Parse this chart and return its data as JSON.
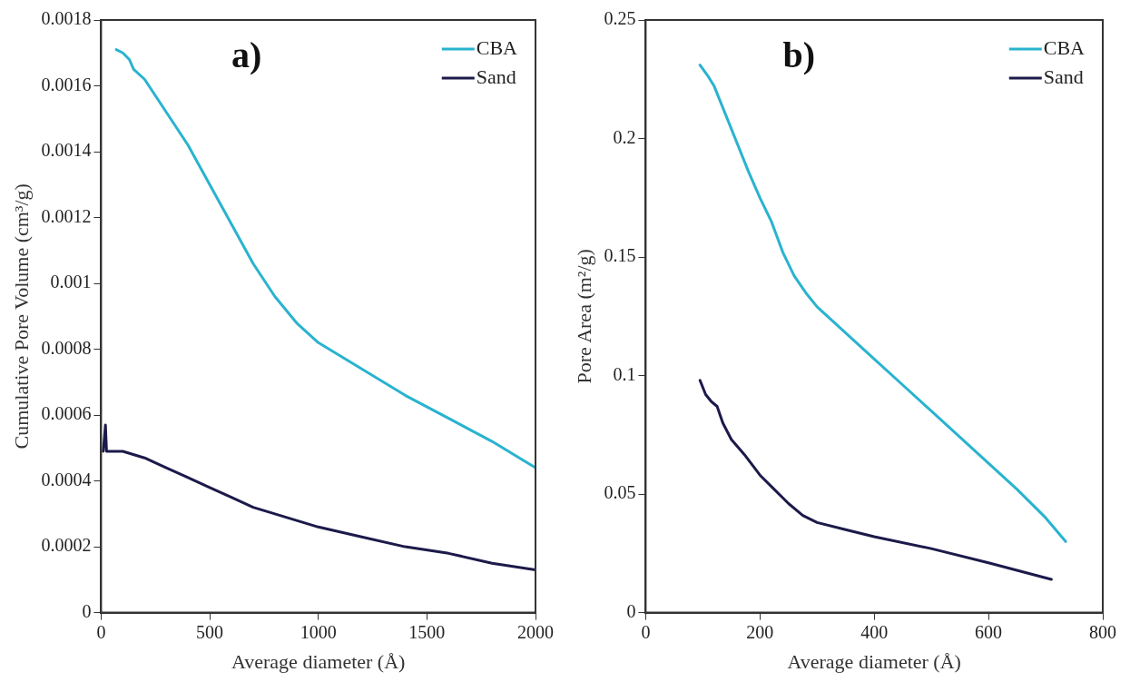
{
  "chart_data": [
    {
      "type": "line",
      "xlabel": "Average diameter (Å)",
      "ylabel": "Cumulative Pore Volume (cm³/g)",
      "annotations": [
        "a)"
      ],
      "legend": "top right",
      "marker": "none",
      "line_style": "solid",
      "grid": false,
      "xlim": [
        0,
        2000
      ],
      "xticks": [
        0,
        500,
        1000,
        1500,
        2000
      ],
      "ylim": [
        0,
        0.0018
      ],
      "yticks": [
        0,
        0.0002,
        0.0004,
        0.0006,
        0.0008,
        0.001,
        0.0012,
        0.0014,
        0.0016,
        0.0018
      ],
      "series": [
        {
          "name": "CBA",
          "color": "#29b3cf",
          "x": [
            70,
            100,
            130,
            150,
            200,
            300,
            400,
            500,
            600,
            700,
            800,
            900,
            1000,
            1200,
            1400,
            1600,
            1800,
            2000
          ],
          "values": [
            0.00171,
            0.0017,
            0.00168,
            0.00165,
            0.00162,
            0.00152,
            0.00142,
            0.0013,
            0.00118,
            0.00106,
            0.00096,
            0.00088,
            0.00082,
            0.00074,
            0.00066,
            0.00059,
            0.00052,
            0.00044
          ]
        },
        {
          "name": "Sand",
          "color": "#1c1a4a",
          "x": [
            10,
            20,
            25,
            100,
            200,
            300,
            400,
            500,
            600,
            700,
            800,
            1000,
            1200,
            1400,
            1600,
            1800,
            2000
          ],
          "values": [
            0.00049,
            0.00057,
            0.00049,
            0.00049,
            0.00047,
            0.00044,
            0.00041,
            0.00038,
            0.00035,
            0.00032,
            0.0003,
            0.00026,
            0.00023,
            0.0002,
            0.00018,
            0.00015,
            0.00013
          ]
        }
      ]
    },
    {
      "type": "line",
      "xlabel": "Average diameter (Å)",
      "ylabel": "Pore Area (m²/g)",
      "annotations": [
        "b)"
      ],
      "legend": "top right",
      "marker": "none",
      "line_style": "solid",
      "grid": false,
      "xlim": [
        0,
        800
      ],
      "xticks": [
        0,
        200,
        400,
        600,
        800
      ],
      "ylim": [
        0,
        0.25
      ],
      "yticks": [
        0,
        0.05,
        0.1,
        0.15,
        0.2,
        0.25
      ],
      "series": [
        {
          "name": "CBA",
          "color": "#29b3cf",
          "x": [
            95,
            110,
            120,
            140,
            160,
            180,
            200,
            220,
            240,
            260,
            280,
            300,
            350,
            400,
            450,
            500,
            550,
            600,
            650,
            700,
            735
          ],
          "values": [
            0.231,
            0.226,
            0.222,
            0.21,
            0.198,
            0.186,
            0.175,
            0.165,
            0.152,
            0.142,
            0.135,
            0.129,
            0.118,
            0.107,
            0.096,
            0.085,
            0.074,
            0.063,
            0.052,
            0.04,
            0.03
          ]
        },
        {
          "name": "Sand",
          "color": "#1c1a4a",
          "x": [
            95,
            105,
            115,
            125,
            135,
            150,
            175,
            200,
            225,
            250,
            275,
            300,
            350,
            400,
            500,
            600,
            710
          ],
          "values": [
            0.098,
            0.092,
            0.089,
            0.087,
            0.08,
            0.073,
            0.066,
            0.058,
            0.052,
            0.046,
            0.041,
            0.038,
            0.035,
            0.032,
            0.027,
            0.021,
            0.014
          ]
        }
      ]
    }
  ]
}
